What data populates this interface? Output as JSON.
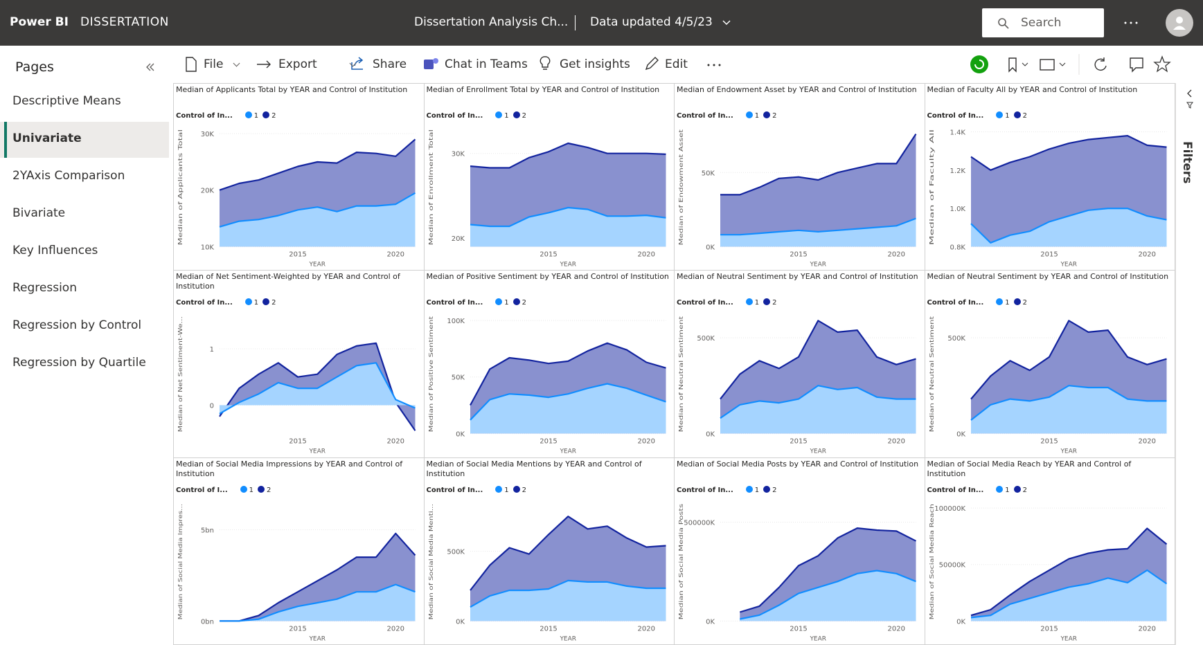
{
  "header": {
    "app": "Power BI",
    "workspace": "DISSERTATION",
    "report": "Dissertation Analysis Ch...",
    "updated": "Data updated 4/5/23",
    "search": "Search"
  },
  "toolbar": [
    "File",
    "Export",
    "Share",
    "Chat in Teams",
    "Get insights",
    "Edit"
  ],
  "pages": {
    "title": "Pages",
    "items": [
      "Descriptive Means",
      "Univariate",
      "2YAxis Comparison",
      "Bivariate",
      "Key Influences",
      "Regression",
      "Regression by Control",
      "Regression by Quartile"
    ],
    "selected": 1
  },
  "filters": "Filters",
  "chart_data": [
    {
      "type": "area",
      "title": "Median of Applicants Total by YEAR and Control of Institution",
      "legend_title": "Control of In...",
      "xlabel": "YEAR",
      "ylabel": "Median of Applicants Total",
      "x": [
        2011,
        2012,
        2013,
        2014,
        2015,
        2016,
        2017,
        2018,
        2019,
        2020,
        2021
      ],
      "xlim": [
        2011,
        2021
      ],
      "xticks": [
        2015,
        2020
      ],
      "ylim": [
        10000,
        31000
      ],
      "yticks": [
        {
          "value": 10000,
          "label": "10K"
        },
        {
          "value": 20000,
          "label": "20K"
        },
        {
          "value": 30000,
          "label": "30K"
        }
      ],
      "grid": true,
      "series": [
        {
          "name": "1",
          "color": "#118DFF",
          "values": [
            13500,
            14500,
            14800,
            15500,
            16500,
            17000,
            16200,
            17200,
            17200,
            17500,
            19500
          ]
        },
        {
          "name": "2",
          "color": "#12239E",
          "values": [
            20000,
            21200,
            21800,
            23000,
            24200,
            25000,
            24800,
            26700,
            26500,
            26000,
            29000
          ]
        }
      ]
    },
    {
      "type": "area",
      "title": "Median of Enrollment Total by YEAR and Control of Institution",
      "legend_title": "Control of In...",
      "xlabel": "YEAR",
      "ylabel": "Median of Enrollment Total",
      "x": [
        2011,
        2012,
        2013,
        2014,
        2015,
        2016,
        2017,
        2018,
        2019,
        2020,
        2021
      ],
      "xlim": [
        2011,
        2021
      ],
      "xticks": [
        2015,
        2020
      ],
      "ylim": [
        19000,
        33000
      ],
      "yticks": [
        {
          "value": 20000,
          "label": "20K"
        },
        {
          "value": 30000,
          "label": "30K"
        }
      ],
      "grid": true,
      "series": [
        {
          "name": "1",
          "color": "#118DFF",
          "values": [
            21600,
            21400,
            21400,
            22500,
            23000,
            23600,
            23400,
            22600,
            22600,
            22700,
            22400
          ]
        },
        {
          "name": "2",
          "color": "#12239E",
          "values": [
            28500,
            28300,
            28300,
            29500,
            30200,
            31200,
            30700,
            30000,
            30000,
            30000,
            29900
          ]
        }
      ]
    },
    {
      "type": "area",
      "title": "Median of Endowment Asset by YEAR and Control of Institution",
      "legend_title": "Control of In...",
      "xlabel": "YEAR",
      "ylabel": "Median of Endowment Asset",
      "x": [
        2011,
        2012,
        2013,
        2014,
        2015,
        2016,
        2017,
        2018,
        2019,
        2020,
        2021
      ],
      "xlim": [
        2011,
        2021
      ],
      "xticks": [
        2015,
        2020
      ],
      "ylim": [
        0,
        80000
      ],
      "yticks": [
        {
          "value": 0,
          "label": "0K"
        },
        {
          "value": 50000,
          "label": "50K"
        }
      ],
      "grid": true,
      "series": [
        {
          "name": "1",
          "color": "#118DFF",
          "values": [
            8000,
            8000,
            9000,
            10000,
            11000,
            10000,
            11000,
            12000,
            13000,
            14000,
            19000
          ]
        },
        {
          "name": "2",
          "color": "#12239E",
          "values": [
            35000,
            35000,
            40000,
            46000,
            47000,
            45000,
            50000,
            53000,
            56000,
            56000,
            76000
          ]
        }
      ]
    },
    {
      "type": "area",
      "title": "Median of Faculty All by YEAR and Control of Institution",
      "legend_title": "Control of In...",
      "xlabel": "YEAR",
      "ylabel": "Median of Faculty All",
      "x": [
        2011,
        2012,
        2013,
        2014,
        2015,
        2016,
        2017,
        2018,
        2019,
        2020,
        2021
      ],
      "xlim": [
        2011,
        2021
      ],
      "xticks": [
        2015,
        2020
      ],
      "ylim": [
        800,
        1420
      ],
      "yticks": [
        {
          "value": 800,
          "label": "0.8K"
        },
        {
          "value": 1000,
          "label": "1.0K"
        },
        {
          "value": 1200,
          "label": "1.2K"
        },
        {
          "value": 1400,
          "label": "1.4K"
        }
      ],
      "grid": true,
      "series": [
        {
          "name": "1",
          "color": "#118DFF",
          "values": [
            920,
            820,
            860,
            880,
            930,
            960,
            990,
            1000,
            1000,
            960,
            940
          ]
        },
        {
          "name": "2",
          "color": "#12239E",
          "values": [
            1270,
            1200,
            1240,
            1270,
            1310,
            1340,
            1360,
            1370,
            1380,
            1330,
            1320
          ]
        }
      ]
    },
    {
      "type": "area",
      "title": "Median of Net Sentiment-Weighted by YEAR and Control of Institution",
      "legend_title": "Control of In...",
      "xlabel": "YEAR",
      "ylabel": "Median of Net Sentiment-We...",
      "x": [
        2011,
        2012,
        2013,
        2014,
        2015,
        2016,
        2017,
        2018,
        2019,
        2020,
        2021
      ],
      "xlim": [
        2011,
        2021
      ],
      "xticks": [
        2015,
        2020
      ],
      "ylim": [
        -0.5,
        1.6
      ],
      "yticks": [
        0,
        1
      ],
      "grid": true,
      "series": [
        {
          "name": "1",
          "color": "#118DFF",
          "values": [
            -0.15,
            0.05,
            0.2,
            0.4,
            0.3,
            0.3,
            0.5,
            0.7,
            0.75,
            0.1,
            -0.05
          ]
        },
        {
          "name": "2",
          "color": "#12239E",
          "values": [
            -0.2,
            0.3,
            0.55,
            0.75,
            0.5,
            0.55,
            0.9,
            1.05,
            1.1,
            0.05,
            -0.45
          ]
        }
      ]
    },
    {
      "type": "area",
      "title": "Median of Positive Sentiment by YEAR and Control of Institution",
      "legend_title": "Control of In...",
      "xlabel": "YEAR",
      "ylabel": "Median of Positive Sentiment",
      "x": [
        2011,
        2012,
        2013,
        2014,
        2015,
        2016,
        2017,
        2018,
        2019,
        2020,
        2021
      ],
      "xlim": [
        2011,
        2021
      ],
      "xticks": [
        2015,
        2020
      ],
      "ylim": [
        0,
        105000
      ],
      "yticks": [
        {
          "value": 0,
          "label": "0K"
        },
        {
          "value": 50000,
          "label": "50K"
        },
        {
          "value": 100000,
          "label": "100K"
        }
      ],
      "grid": true,
      "series": [
        {
          "name": "1",
          "color": "#118DFF",
          "values": [
            12000,
            30000,
            35000,
            34000,
            32000,
            35000,
            40000,
            44000,
            40000,
            34000,
            28000
          ]
        },
        {
          "name": "2",
          "color": "#12239E",
          "values": [
            25000,
            57000,
            67000,
            65000,
            62000,
            64000,
            73000,
            80000,
            74000,
            63000,
            58000
          ]
        }
      ]
    },
    {
      "type": "area",
      "title": "Median of Neutral Sentiment by YEAR and Control of Institution",
      "legend_title": "Control of In...",
      "xlabel": "YEAR",
      "ylabel": "Median of Neutral Sentiment",
      "x": [
        2011,
        2012,
        2013,
        2014,
        2015,
        2016,
        2017,
        2018,
        2019,
        2020,
        2021
      ],
      "xlim": [
        2011,
        2021
      ],
      "xticks": [
        2015,
        2020
      ],
      "ylim": [
        0,
        620000
      ],
      "yticks": [
        {
          "value": 0,
          "label": "0K"
        },
        {
          "value": 500000,
          "label": "500K"
        }
      ],
      "grid": true,
      "series": [
        {
          "name": "1",
          "color": "#118DFF",
          "values": [
            80000,
            150000,
            170000,
            160000,
            180000,
            250000,
            230000,
            240000,
            190000,
            180000,
            180000
          ]
        },
        {
          "name": "2",
          "color": "#12239E",
          "values": [
            180000,
            310000,
            380000,
            340000,
            400000,
            590000,
            530000,
            540000,
            400000,
            360000,
            390000
          ]
        }
      ]
    },
    {
      "type": "area",
      "title": "Median of Neutral Sentiment by YEAR and Control of Institution",
      "legend_title": "Control of In...",
      "xlabel": "YEAR",
      "ylabel": "Median of Neutral Sentiment",
      "x": [
        2011,
        2012,
        2013,
        2014,
        2015,
        2016,
        2017,
        2018,
        2019,
        2020,
        2021
      ],
      "xlim": [
        2011,
        2021
      ],
      "xticks": [
        2015,
        2020
      ],
      "ylim": [
        0,
        620000
      ],
      "yticks": [
        {
          "value": 0,
          "label": "0K"
        },
        {
          "value": 500000,
          "label": "500K"
        }
      ],
      "grid": true,
      "series": [
        {
          "name": "1",
          "color": "#118DFF",
          "values": [
            70000,
            150000,
            180000,
            170000,
            190000,
            250000,
            240000,
            240000,
            180000,
            170000,
            170000
          ]
        },
        {
          "name": "2",
          "color": "#12239E",
          "values": [
            180000,
            300000,
            380000,
            330000,
            400000,
            590000,
            530000,
            540000,
            400000,
            360000,
            390000
          ]
        }
      ]
    },
    {
      "type": "area",
      "title": "Median of Social Media Impressions by YEAR and Control of Institution",
      "legend_title": "Control of I...",
      "xlabel": "YEAR",
      "ylabel": "Median of Social Media Impres...",
      "x": [
        2011,
        2012,
        2013,
        2014,
        2015,
        2016,
        2017,
        2018,
        2019,
        2020,
        2021
      ],
      "xlim": [
        2011,
        2021
      ],
      "xticks": [
        2015,
        2020
      ],
      "ylim": [
        0,
        6500000000
      ],
      "yticks": [
        {
          "value": 0,
          "label": "0bn"
        },
        {
          "value": 5000000000,
          "label": "5bn"
        }
      ],
      "grid": true,
      "series": [
        {
          "name": "1",
          "color": "#118DFF",
          "values": [
            0,
            0,
            100000000,
            500000000,
            800000000,
            1000000000,
            1200000000,
            1600000000,
            1600000000,
            2000000000,
            1600000000
          ]
        },
        {
          "name": "2",
          "color": "#12239E",
          "values": [
            0,
            0,
            300000000,
            1000000000,
            1600000000,
            2200000000,
            2800000000,
            3500000000,
            3500000000,
            4800000000,
            3600000000
          ]
        }
      ]
    },
    {
      "type": "area",
      "title": "Median of Social Media Mentions by YEAR and Control of Institution",
      "legend_title": "Control of In...",
      "xlabel": "YEAR",
      "ylabel": "Median of Social Media Menti...",
      "x": [
        2011,
        2012,
        2013,
        2014,
        2015,
        2016,
        2017,
        2018,
        2019,
        2020,
        2021
      ],
      "xlim": [
        2011,
        2021
      ],
      "xticks": [
        2015,
        2020
      ],
      "ylim": [
        0,
        850000
      ],
      "yticks": [
        {
          "value": 0,
          "label": "0K"
        },
        {
          "value": 500000,
          "label": "500K"
        }
      ],
      "grid": true,
      "series": [
        {
          "name": "1",
          "color": "#118DFF",
          "values": [
            100000,
            180000,
            220000,
            220000,
            230000,
            290000,
            280000,
            280000,
            250000,
            235000,
            235000
          ]
        },
        {
          "name": "2",
          "color": "#12239E",
          "values": [
            220000,
            400000,
            525000,
            480000,
            620000,
            750000,
            660000,
            680000,
            595000,
            530000,
            540000
          ]
        }
      ]
    },
    {
      "type": "area",
      "title": "Median of Social Media Posts by YEAR and Control of Institution",
      "legend_title": "Control of In...",
      "xlabel": "YEAR",
      "ylabel": "Median of Social Media Posts",
      "x": [
        2012,
        2013,
        2014,
        2015,
        2016,
        2017,
        2018,
        2019,
        2020,
        2021
      ],
      "xlim": [
        2011,
        2021
      ],
      "xticks": [
        2015,
        2020
      ],
      "ylim": [
        0,
        600000000
      ],
      "yticks": [
        {
          "value": 0,
          "label": "0K"
        },
        {
          "value": 500000000,
          "label": "500000K"
        }
      ],
      "grid": true,
      "series": [
        {
          "name": "1",
          "color": "#118DFF",
          "values": [
            10000000,
            30000000,
            80000000,
            140000000,
            170000000,
            200000000,
            240000000,
            255000000,
            240000000,
            200000000
          ]
        },
        {
          "name": "2",
          "color": "#12239E",
          "values": [
            45000000,
            75000000,
            170000000,
            280000000,
            330000000,
            420000000,
            470000000,
            460000000,
            455000000,
            405000000
          ]
        }
      ]
    },
    {
      "type": "area",
      "title": "Median of Social Media Reach by YEAR and Control of Institution",
      "legend_title": "Control of In...",
      "xlabel": "YEAR",
      "ylabel": "Median of Social Media Reach",
      "x": [
        2011,
        2012,
        2013,
        2014,
        2015,
        2016,
        2017,
        2018,
        2019,
        2020,
        2021
      ],
      "xlim": [
        2011,
        2021
      ],
      "xticks": [
        2015,
        2020
      ],
      "ylim": [
        0,
        105000000
      ],
      "yticks": [
        {
          "value": 0,
          "label": "0K"
        },
        {
          "value": 50000000,
          "label": "50000K"
        },
        {
          "value": 100000000,
          "label": "100000K"
        }
      ],
      "grid": true,
      "series": [
        {
          "name": "1",
          "color": "#118DFF",
          "values": [
            3000000,
            5000000,
            15000000,
            20000000,
            25000000,
            30000000,
            33000000,
            38000000,
            34000000,
            45000000,
            33000000
          ]
        },
        {
          "name": "2",
          "color": "#12239E",
          "values": [
            5000000,
            10000000,
            23000000,
            35000000,
            45000000,
            55000000,
            60000000,
            63000000,
            64000000,
            82000000,
            68000000
          ]
        }
      ]
    }
  ]
}
